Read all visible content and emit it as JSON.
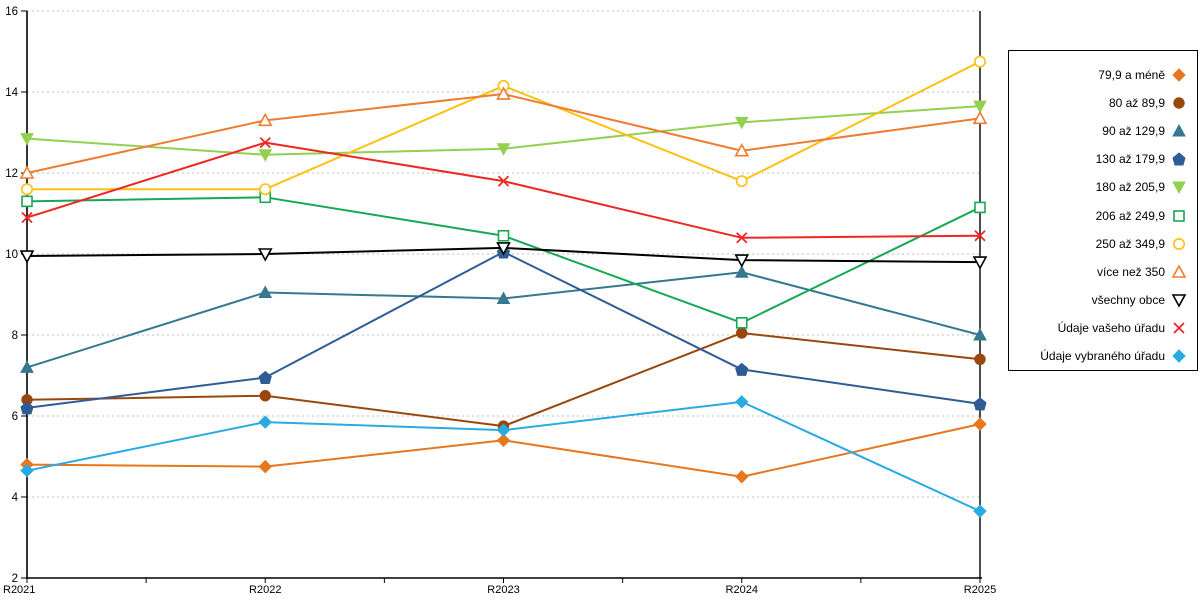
{
  "chart_data": {
    "type": "line",
    "title": "",
    "xlabel": "",
    "ylabel": "",
    "categories": [
      "R2021",
      "R2022",
      "R2023",
      "R2024",
      "R2025"
    ],
    "ylim": [
      2,
      16
    ],
    "yticks": [
      2,
      4,
      6,
      8,
      10,
      12,
      14,
      16
    ],
    "grid": "horizontal-dashed",
    "gridline_color": "#BFBFBF",
    "axis_color": "#000000",
    "legend_position": "right-top",
    "series": [
      {
        "name": "79,9 a méně",
        "marker": "diamond",
        "filled": true,
        "color": "#E8761F",
        "values": [
          4.8,
          4.75,
          5.4,
          4.5,
          5.8
        ]
      },
      {
        "name": "80 až 89,9",
        "marker": "circle",
        "filled": true,
        "color": "#9A470D",
        "values": [
          6.4,
          6.5,
          5.75,
          8.05,
          7.4
        ]
      },
      {
        "name": "90 až 129,9",
        "marker": "triangle-up",
        "filled": true,
        "color": "#35788F",
        "values": [
          7.2,
          9.05,
          8.9,
          9.55,
          8.0
        ]
      },
      {
        "name": "130 až 179,9",
        "marker": "pentagon",
        "filled": true,
        "color": "#2F5C94",
        "values": [
          6.2,
          6.95,
          10.05,
          7.15,
          6.3
        ]
      },
      {
        "name": "180 až 205,9",
        "marker": "triangle-down",
        "filled": true,
        "color": "#92D050",
        "values": [
          12.85,
          12.45,
          12.6,
          13.25,
          13.65
        ]
      },
      {
        "name": "206 až 249,9",
        "marker": "square",
        "filled": false,
        "color": "#17A854",
        "values": [
          11.3,
          11.4,
          10.45,
          8.3,
          11.15
        ]
      },
      {
        "name": "250 až 349,9",
        "marker": "circle",
        "filled": false,
        "color": "#FFC010",
        "values": [
          11.6,
          11.6,
          14.15,
          11.8,
          14.75
        ]
      },
      {
        "name": "více než 350",
        "marker": "triangle-up",
        "filled": false,
        "color": "#ED7D31",
        "values": [
          12.0,
          13.3,
          13.95,
          12.55,
          13.35
        ]
      },
      {
        "name": "všechny obce",
        "marker": "triangle-down",
        "filled": false,
        "color": "#000000",
        "values": [
          9.95,
          10.0,
          10.15,
          9.85,
          9.8
        ]
      },
      {
        "name": "Údaje vašeho úřadu",
        "marker": "x",
        "filled": false,
        "color": "#EE2724",
        "values": [
          10.9,
          12.75,
          11.8,
          10.4,
          10.45
        ]
      },
      {
        "name": "Údaje vybraného úřadu",
        "marker": "diamond",
        "filled": true,
        "color": "#29ABE2",
        "values": [
          4.65,
          5.85,
          5.65,
          6.35,
          3.65
        ]
      }
    ]
  }
}
